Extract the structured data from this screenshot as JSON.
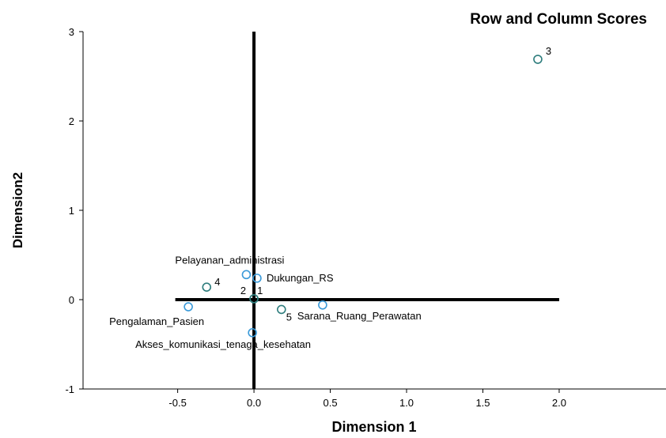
{
  "chart_data": {
    "type": "scatter",
    "title": "Row and Column Scores",
    "xlabel": "Dimension 1",
    "ylabel": "Dimension2",
    "xlim": [
      -1.12,
      2.7
    ],
    "ylim": [
      -1,
      3
    ],
    "x_ticks": [
      -0.5,
      0.0,
      0.5,
      1.0,
      1.5,
      2.0
    ],
    "x_tick_labels": [
      "-0.5",
      "0.0",
      "0.5",
      "1.0",
      "1.5",
      "2.0"
    ],
    "y_ticks": [
      -1,
      0,
      1,
      2,
      3
    ],
    "y_tick_labels": [
      "-1",
      "0",
      "1",
      "2",
      "3"
    ],
    "reference_lines": {
      "x": 0,
      "y": 0,
      "x_extent": [
        -0.5,
        2.0
      ],
      "y_extent": [
        -1,
        3
      ]
    },
    "grid": false,
    "colors": {
      "row_points": "#2e7d7d",
      "column_points": "#3a9ad9",
      "reference": "#000000"
    },
    "series": [
      {
        "points": [
          {
            "label": "1",
            "x": 0.0,
            "y": 0.01
          },
          {
            "label": "2",
            "x": 0.0,
            "y": 0.01
          },
          {
            "label": "3",
            "x": 1.86,
            "y": 2.69
          },
          {
            "label": "4",
            "x": -0.31,
            "y": 0.14
          },
          {
            "label": "5",
            "x": 0.18,
            "y": -0.11
          }
        ]
      },
      {
        "points": [
          {
            "label": "Pelayanan_administrasi",
            "x": -0.05,
            "y": 0.28
          },
          {
            "label": "Dukungan_RS",
            "x": 0.02,
            "y": 0.24
          },
          {
            "label": "Pengalaman_Pasien",
            "x": -0.43,
            "y": -0.08
          },
          {
            "label": "Sarana_Ruang_Perawatan",
            "x": 0.45,
            "y": -0.06
          },
          {
            "label": "Akses_komunikasi_tenaga_kesehatan",
            "x": -0.01,
            "y": -0.37
          }
        ]
      }
    ]
  }
}
